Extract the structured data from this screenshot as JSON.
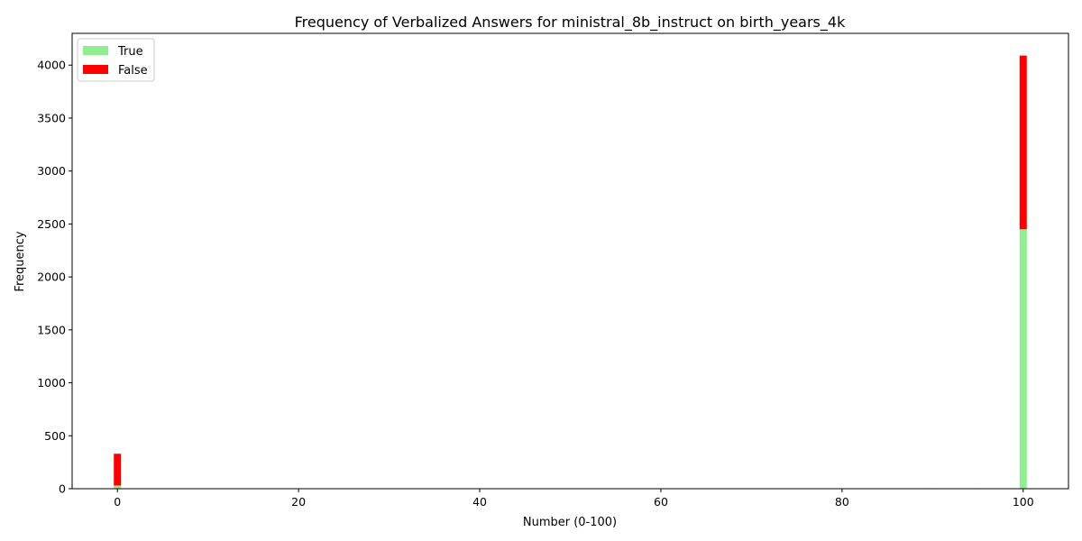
{
  "chart_data": {
    "type": "bar",
    "stacked": true,
    "title": "Frequency of Verbalized Answers for ministral_8b_instruct on birth_years_4k",
    "xlabel": "Number (0-100)",
    "ylabel": "Frequency",
    "xlim": [
      -5,
      105
    ],
    "ylim": [
      0,
      4300
    ],
    "xticks": [
      0,
      20,
      40,
      60,
      80,
      100
    ],
    "yticks": [
      0,
      500,
      1000,
      1500,
      2000,
      2500,
      3000,
      3500,
      4000
    ],
    "legend_position": "top-left",
    "grid": false,
    "x": [
      0,
      90,
      95,
      100
    ],
    "series": [
      {
        "name": "True",
        "color": "#90ee90",
        "values": [
          30,
          5,
          5,
          2450
        ]
      },
      {
        "name": "False",
        "color": "#ff0000",
        "values": [
          300,
          0,
          0,
          1640
        ]
      }
    ]
  }
}
